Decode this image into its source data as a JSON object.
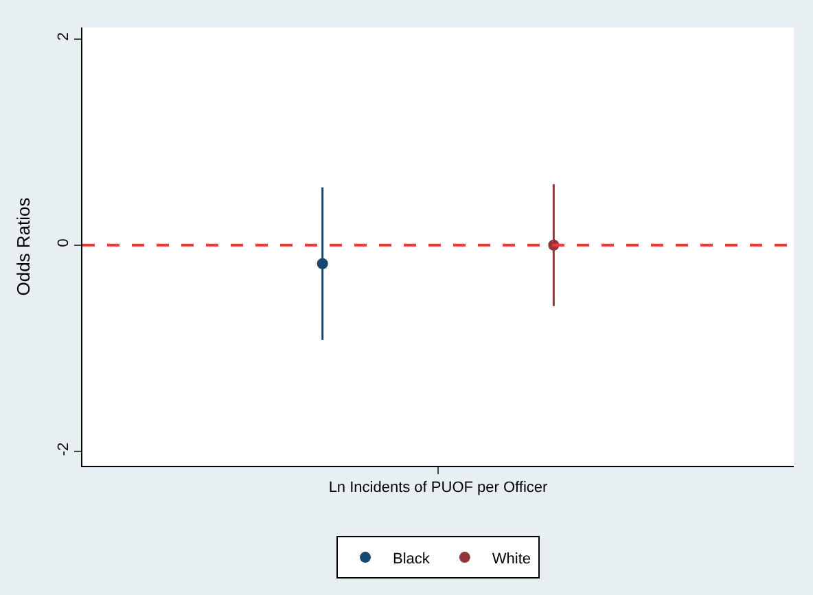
{
  "chart_data": {
    "type": "scatter",
    "ylabel": "Odds Ratios",
    "categories": [
      "Ln Incidents of PUOF per Officer"
    ],
    "series": [
      {
        "name": "Black",
        "color": "#1a476f",
        "values": [
          -0.18
        ],
        "errors": [
          [
            -0.92,
            0.56
          ]
        ]
      },
      {
        "name": "White",
        "color": "#90353b",
        "values": [
          0.0
        ],
        "errors": [
          [
            -0.59,
            0.59
          ]
        ]
      }
    ],
    "ylim": [
      -2.14,
      2.11
    ],
    "yticks": [
      -2,
      0,
      2
    ],
    "ref_lines": [
      {
        "axis": "y",
        "value": 0,
        "color": "#ff3333",
        "line_style": "dashed"
      }
    ],
    "marker": "circle",
    "legend": "bottom"
  }
}
